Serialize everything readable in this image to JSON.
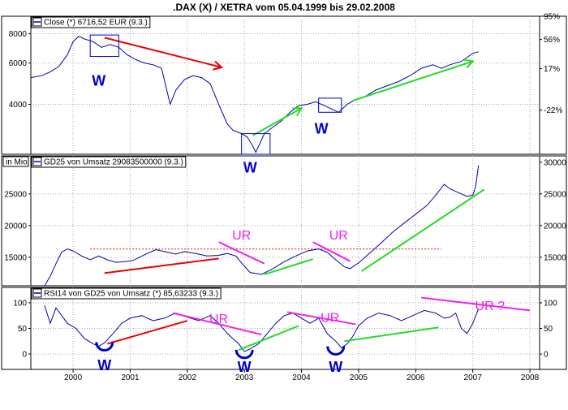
{
  "chart_data": {
    "title": ".DAX (X) / XETRA vom 05.04.1999 bis 29.02.2008",
    "x_axis": {
      "tick_labels": [
        "2000",
        "2001",
        "2002",
        "2003",
        "2004",
        "2005",
        "2006",
        "2007",
        "2008"
      ],
      "tick_years": [
        2000,
        2001,
        2002,
        2003,
        2004,
        2005,
        2006,
        2007,
        2008
      ],
      "range": [
        1999.26,
        2008.17
      ]
    },
    "colors": {
      "series": "#0000b0",
      "red": "#ee0000",
      "green": "#22dd22",
      "magenta": "#ee22ee",
      "w": "#0000cc",
      "axis": "#000000",
      "grid": "#aaaaaa"
    },
    "panels": [
      {
        "id": "price",
        "type": "line",
        "scale": "log",
        "legend": "Close (*) 6716,52 EUR (9.3.)",
        "y_range": [
          2450,
          9500
        ],
        "left_ticks": [
          {
            "label": "8000",
            "value": 8000
          },
          {
            "label": "6000",
            "value": 6000
          },
          {
            "label": "4000",
            "value": 4000
          }
        ],
        "right_ticks": [
          {
            "label": "95%",
            "value": 9500
          },
          {
            "label": "56%",
            "value": 7560
          },
          {
            "label": "17%",
            "value": 5680
          },
          {
            "label": "-22%",
            "value": 3780
          }
        ],
        "series": {
          "x": [
            1999.26,
            1999.45,
            1999.6,
            1999.75,
            1999.9,
            2000.0,
            2000.1,
            2000.2,
            2000.35,
            2000.5,
            2000.65,
            2000.8,
            2000.95,
            2001.1,
            2001.25,
            2001.4,
            2001.55,
            2001.7,
            2001.8,
            2001.95,
            2002.1,
            2002.25,
            2002.4,
            2002.55,
            2002.7,
            2002.8,
            2002.95,
            2003.05,
            2003.15,
            2003.2,
            2003.35,
            2003.5,
            2003.65,
            2003.8,
            2003.95,
            2004.1,
            2004.25,
            2004.4,
            2004.55,
            2004.65,
            2004.8,
            2004.95,
            2005.1,
            2005.3,
            2005.5,
            2005.7,
            2005.9,
            2006.1,
            2006.3,
            2006.45,
            2006.6,
            2006.8,
            2007.0,
            2007.1
          ],
          "values": [
            5200,
            5300,
            5500,
            5800,
            6500,
            7400,
            7800,
            7600,
            7400,
            7000,
            7200,
            7000,
            6500,
            6200,
            6000,
            5900,
            5700,
            4000,
            4600,
            5100,
            5300,
            5200,
            4900,
            4000,
            3300,
            3100,
            3000,
            2900,
            2650,
            2500,
            3000,
            3200,
            3400,
            3700,
            3950,
            4000,
            4100,
            3950,
            3800,
            3700,
            4000,
            4200,
            4300,
            4600,
            4800,
            5000,
            5300,
            5700,
            5900,
            5700,
            5900,
            6100,
            6600,
            6700
          ]
        },
        "annotations": [
          {
            "kind": "arrow",
            "color": "red",
            "x1": 2000.55,
            "y1": 7700,
            "x2": 2002.6,
            "y2": 5750
          },
          {
            "kind": "arrow",
            "color": "green",
            "x1": 2003.15,
            "y1": 2950,
            "x2": 2004.0,
            "y2": 3850
          },
          {
            "kind": "arrow",
            "color": "green",
            "x1": 2004.9,
            "y1": 4150,
            "x2": 2007.0,
            "y2": 6100
          },
          {
            "kind": "box",
            "x1": 2000.3,
            "y1": 7900,
            "x2": 2000.8,
            "y2": 6400
          },
          {
            "kind": "box",
            "x1": 2002.95,
            "y1": 3000,
            "x2": 2003.45,
            "y2": 2450
          },
          {
            "kind": "box",
            "x1": 2004.3,
            "y1": 4250,
            "x2": 2004.7,
            "y2": 3700
          },
          {
            "kind": "text",
            "text": "W",
            "color": "w",
            "x": 2000.45,
            "y": 5050
          },
          {
            "kind": "text",
            "text": "W",
            "color": "w",
            "x": 2003.1,
            "y": 2150
          },
          {
            "kind": "text",
            "text": "W",
            "color": "w",
            "x": 2004.35,
            "y": 3150
          }
        ]
      },
      {
        "id": "volume",
        "type": "line",
        "scale": "linear",
        "unit_label": "in Mio",
        "legend": "GD25 von Umsatz 29083500000 (9.3.)",
        "y_range": [
          10500,
          31000
        ],
        "left_ticks": [
          {
            "label": "25000",
            "value": 25000
          },
          {
            "label": "20000",
            "value": 20000
          },
          {
            "label": "15000",
            "value": 15000
          }
        ],
        "right_ticks": [
          {
            "label": "30000",
            "value": 30000
          },
          {
            "label": "25000",
            "value": 25000
          },
          {
            "label": "20000",
            "value": 20000
          },
          {
            "label": "15000",
            "value": 15000
          }
        ],
        "series": {
          "x": [
            1999.5,
            1999.6,
            1999.7,
            1999.8,
            1999.9,
            2000.0,
            2000.15,
            2000.3,
            2000.45,
            2000.6,
            2000.75,
            2000.9,
            2001.05,
            2001.25,
            2001.45,
            2001.65,
            2001.8,
            2001.95,
            2002.15,
            2002.35,
            2002.55,
            2002.7,
            2002.85,
            2002.95,
            2003.1,
            2003.3,
            2003.5,
            2003.7,
            2003.9,
            2004.1,
            2004.3,
            2004.45,
            2004.6,
            2004.75,
            2004.85,
            2005.0,
            2005.2,
            2005.4,
            2005.6,
            2005.8,
            2006.0,
            2006.2,
            2006.35,
            2006.5,
            2006.6,
            2006.75,
            2006.9,
            2007.0,
            2007.05,
            2007.1
          ],
          "values": [
            10500,
            12000,
            14000,
            15800,
            16300,
            16000,
            15200,
            14600,
            15200,
            14600,
            14200,
            14300,
            14500,
            15400,
            16200,
            15800,
            15500,
            15900,
            15600,
            15200,
            15300,
            15600,
            15200,
            14100,
            12600,
            12300,
            13200,
            14300,
            15200,
            16000,
            16300,
            15800,
            14600,
            13500,
            13200,
            14100,
            15700,
            17300,
            19000,
            20400,
            21800,
            23200,
            24800,
            26500,
            25800,
            25200,
            24600,
            24800,
            26200,
            29500
          ]
        },
        "reference_line": {
          "value": 16300,
          "x1": 2000.3,
          "x2": 2006.45,
          "color": "red"
        },
        "annotations": [
          {
            "kind": "line",
            "color": "red",
            "x1": 2000.55,
            "y1": 12500,
            "x2": 2002.55,
            "y2": 14800
          },
          {
            "kind": "line",
            "color": "magenta",
            "x1": 2002.55,
            "y1": 17400,
            "x2": 2003.35,
            "y2": 14000
          },
          {
            "kind": "line",
            "color": "green",
            "x1": 2003.35,
            "y1": 12300,
            "x2": 2004.2,
            "y2": 14700
          },
          {
            "kind": "line",
            "color": "magenta",
            "x1": 2004.2,
            "y1": 17400,
            "x2": 2004.85,
            "y2": 14400
          },
          {
            "kind": "line",
            "color": "green",
            "x1": 2005.05,
            "y1": 12800,
            "x2": 2007.2,
            "y2": 25700
          },
          {
            "kind": "text",
            "text": "UR",
            "color": "magenta",
            "x": 2002.95,
            "y": 18600
          },
          {
            "kind": "text",
            "text": "UR",
            "color": "magenta",
            "x": 2004.65,
            "y": 18600
          }
        ]
      },
      {
        "id": "rsi",
        "type": "line",
        "scale": "linear",
        "legend": "RSI14 von GD25 von Umsatz (*) 85,63233 (9.3.)",
        "y_range": [
          -30,
          130
        ],
        "left_ticks": [
          {
            "label": "100",
            "value": 100
          },
          {
            "label": "50",
            "value": 50
          },
          {
            "label": "0",
            "value": 0
          }
        ],
        "right_ticks": [
          {
            "label": "100",
            "value": 100
          },
          {
            "label": "50",
            "value": 50
          },
          {
            "label": "0",
            "value": 0
          }
        ],
        "series": {
          "x": [
            1999.5,
            1999.6,
            1999.7,
            1999.8,
            1999.9,
            2000.05,
            2000.2,
            2000.35,
            2000.45,
            2000.55,
            2000.7,
            2000.85,
            2001.0,
            2001.2,
            2001.4,
            2001.6,
            2001.8,
            2002.0,
            2002.2,
            2002.4,
            2002.55,
            2002.7,
            2002.8,
            2002.9,
            2003.0,
            2003.1,
            2003.25,
            2003.4,
            2003.55,
            2003.7,
            2003.85,
            2004.0,
            2004.15,
            2004.3,
            2004.45,
            2004.6,
            2004.7,
            2004.8,
            2004.9,
            2005.0,
            2005.15,
            2005.35,
            2005.55,
            2005.75,
            2005.95,
            2006.15,
            2006.35,
            2006.5,
            2006.6,
            2006.7,
            2006.8,
            2006.9,
            2007.0,
            2007.1
          ],
          "values": [
            95,
            60,
            90,
            75,
            60,
            50,
            30,
            20,
            15,
            22,
            40,
            60,
            70,
            75,
            65,
            70,
            80,
            72,
            65,
            75,
            60,
            40,
            30,
            20,
            5,
            10,
            20,
            40,
            60,
            75,
            80,
            70,
            60,
            70,
            40,
            25,
            12,
            20,
            35,
            55,
            70,
            80,
            75,
            65,
            75,
            85,
            80,
            70,
            72,
            80,
            50,
            40,
            60,
            88
          ]
        },
        "annotations": [
          {
            "kind": "line",
            "color": "red",
            "x1": 2000.6,
            "y1": 20,
            "x2": 2002.0,
            "y2": 65
          },
          {
            "kind": "line",
            "color": "magenta",
            "x1": 2001.75,
            "y1": 80,
            "x2": 2003.3,
            "y2": 38
          },
          {
            "kind": "line",
            "color": "green",
            "x1": 2002.9,
            "y1": 8,
            "x2": 2003.95,
            "y2": 55
          },
          {
            "kind": "line",
            "color": "magenta",
            "x1": 2003.75,
            "y1": 82,
            "x2": 2004.95,
            "y2": 58
          },
          {
            "kind": "line",
            "color": "green",
            "x1": 2004.75,
            "y1": 25,
            "x2": 2006.4,
            "y2": 52
          },
          {
            "kind": "line",
            "color": "magenta",
            "x1": 2006.1,
            "y1": 110,
            "x2": 2008.0,
            "y2": 85
          },
          {
            "kind": "text",
            "text": "UR",
            "color": "magenta",
            "x": 2002.55,
            "y": 70
          },
          {
            "kind": "text",
            "text": "UR",
            "color": "magenta",
            "x": 2004.5,
            "y": 72
          },
          {
            "kind": "text",
            "text": "UR ?",
            "color": "magenta",
            "x": 2007.3,
            "y": 95
          },
          {
            "kind": "arc",
            "color": "w",
            "x": 2000.55,
            "y": 20
          },
          {
            "kind": "arc",
            "color": "w",
            "x": 2003.0,
            "y": 5
          },
          {
            "kind": "arc",
            "color": "w",
            "x": 2004.6,
            "y": 12
          },
          {
            "kind": "text",
            "text": "W",
            "color": "w",
            "x": 2000.55,
            "y": -22
          },
          {
            "kind": "text",
            "text": "W",
            "color": "w",
            "x": 2003.0,
            "y": -25
          },
          {
            "kind": "text",
            "text": "W",
            "color": "w",
            "x": 2004.6,
            "y": -25
          }
        ]
      }
    ]
  }
}
